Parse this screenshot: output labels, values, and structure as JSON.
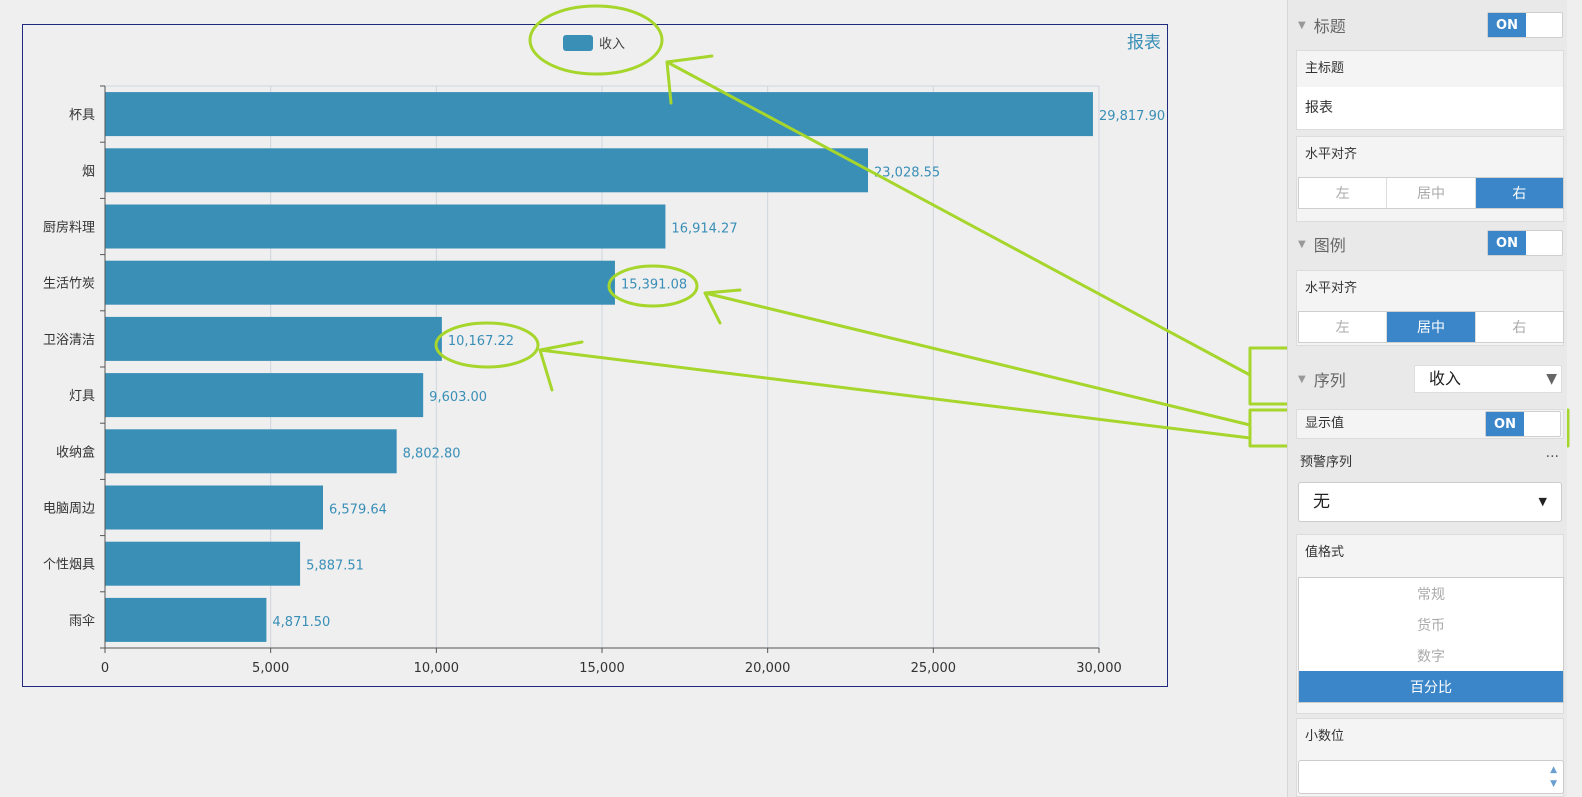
{
  "chart": {
    "title": "报表",
    "legend_label": "收入",
    "colors": {
      "bar": "#3a8fb7",
      "label": "#3a8fb7",
      "grid": "#cfd5dc",
      "frame": "#1f2a80"
    }
  },
  "chart_data": {
    "type": "bar",
    "orientation": "horizontal",
    "title": "报表",
    "legend": "top-center",
    "categories": [
      "杯具",
      "烟",
      "厨房料理",
      "生活竹炭",
      "卫浴清洁",
      "灯具",
      "收纳盒",
      "电脑周边",
      "个性烟具",
      "雨伞"
    ],
    "series": [
      {
        "name": "收入",
        "values": [
          29817.9,
          23028.55,
          16914.27,
          15391.08,
          10167.22,
          9603.0,
          8802.8,
          6579.64,
          5887.51,
          4871.5
        ]
      }
    ],
    "value_labels": [
      "29,817.90",
      "23,028.55",
      "16,914.27",
      "15,391.08",
      "10,167.22",
      "9,603.00",
      "8,802.80",
      "6,579.64",
      "5,887.51",
      "4,871.50"
    ],
    "xlim": [
      0,
      30000
    ],
    "xticks": [
      0,
      5000,
      10000,
      15000,
      20000,
      25000,
      30000
    ],
    "xtick_labels": [
      "0",
      "5,000",
      "10,000",
      "15,000",
      "20,000",
      "25,000",
      "30,000"
    ],
    "grid": true
  },
  "panel": {
    "title_section": {
      "label": "标题",
      "toggle": "ON"
    },
    "main_title": {
      "label": "主标题",
      "value": "报表"
    },
    "title_align": {
      "label": "水平对齐",
      "options": [
        "左",
        "居中",
        "右"
      ],
      "selected": "右"
    },
    "legend_section": {
      "label": "图例",
      "toggle": "ON"
    },
    "legend_align": {
      "label": "水平对齐",
      "options": [
        "左",
        "居中",
        "右"
      ],
      "selected": "居中"
    },
    "series_section": {
      "label": "序列",
      "value": "收入"
    },
    "show_values": {
      "label": "显示值",
      "toggle": "ON"
    },
    "warning_series": {
      "label": "预警序列",
      "more": "···",
      "value": "无"
    },
    "value_format": {
      "label": "值格式",
      "options": [
        "常规",
        "货币",
        "数字",
        "百分比"
      ],
      "selected": "百分比"
    },
    "decimals": {
      "label": "小数位"
    }
  }
}
